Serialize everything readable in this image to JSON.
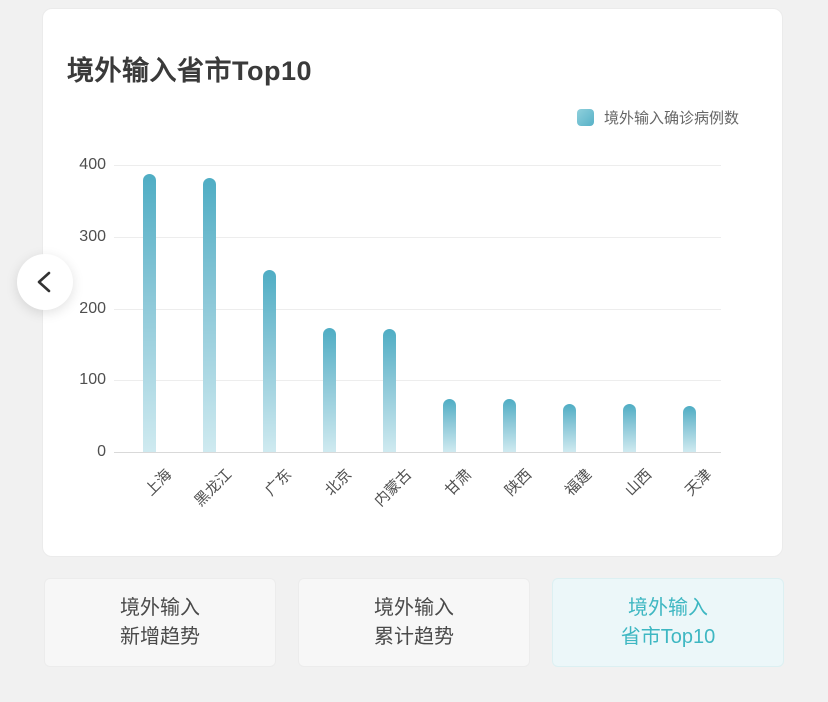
{
  "title": "境外输入省市Top10",
  "legend": {
    "label": "境外输入确诊病例数"
  },
  "chart_data": {
    "type": "bar",
    "title": "境外输入省市Top10",
    "categories": [
      "上海",
      "黑龙江",
      "广东",
      "北京",
      "内蒙古",
      "甘肃",
      "陕西",
      "福建",
      "山西",
      "天津"
    ],
    "series": [
      {
        "name": "境外输入确诊病例数",
        "values": [
          387,
          382,
          253,
          173,
          171,
          74,
          74,
          67,
          67,
          64
        ]
      }
    ],
    "xlabel": "",
    "ylabel": "",
    "ylim": [
      0,
      400
    ],
    "y_ticks": [
      0,
      100,
      200,
      300,
      400
    ],
    "grid": true,
    "legend_position": "top-right",
    "colors": {
      "bar_top": "#4fadc4",
      "bar_bottom": "#cfeaf0"
    }
  },
  "nav": {
    "tabs": [
      {
        "line1": "境外输入",
        "line2": "新增趋势",
        "active": false
      },
      {
        "line1": "境外输入",
        "line2": "累计趋势",
        "active": false
      },
      {
        "line1": "境外输入",
        "line2": "省市Top10",
        "active": true
      }
    ]
  },
  "colors": {
    "page_bg": "#f1f1f1",
    "accent": "#3eb7c2",
    "active_tab_bg": "#ecf7f9"
  }
}
